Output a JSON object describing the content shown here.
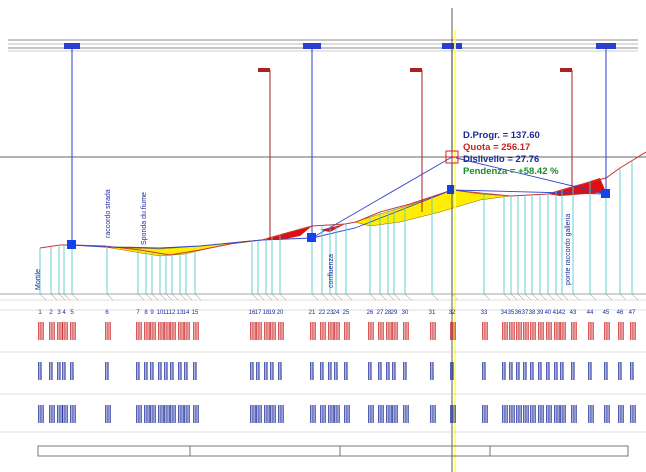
{
  "readout": {
    "progr": "D.Progr. = 137.60",
    "quota": "Quota = 256.17",
    "dislivello": "Dislivello = 27.76",
    "pendenza": "Pendenza = +58.42 %"
  },
  "profile_labels": {
    "mortile": "Mortile",
    "raccordo_strada": "raccordo strada",
    "sponda_fiume": "Sponda du fiume",
    "confluenza": "confluenza",
    "ponte_raccordo": "ponte raccordo galleria"
  },
  "section_numbers": [
    "1",
    "2",
    "3",
    "4",
    "5",
    "6",
    "7",
    "8",
    "9",
    "10",
    "11",
    "12",
    "13",
    "14",
    "15",
    "16",
    "17",
    "18",
    "19",
    "20",
    "21",
    "22",
    "23",
    "24",
    "25",
    "26",
    "27",
    "28",
    "29",
    "30",
    "31",
    "32",
    "33",
    "34",
    "35",
    "36",
    "37",
    "38",
    "39",
    "40",
    "41",
    "42",
    "43",
    "44",
    "45",
    "46",
    "47"
  ],
  "colors": {
    "profile": "#cc3333",
    "fill_fill": "#ffee00",
    "fill_cut": "#dd1111",
    "vertical": "#2a3fcc",
    "station": "#55cccc",
    "cursor_line": "#ffff66",
    "red_text": "#cc2222",
    "blue_text": "#1a2a99"
  }
}
